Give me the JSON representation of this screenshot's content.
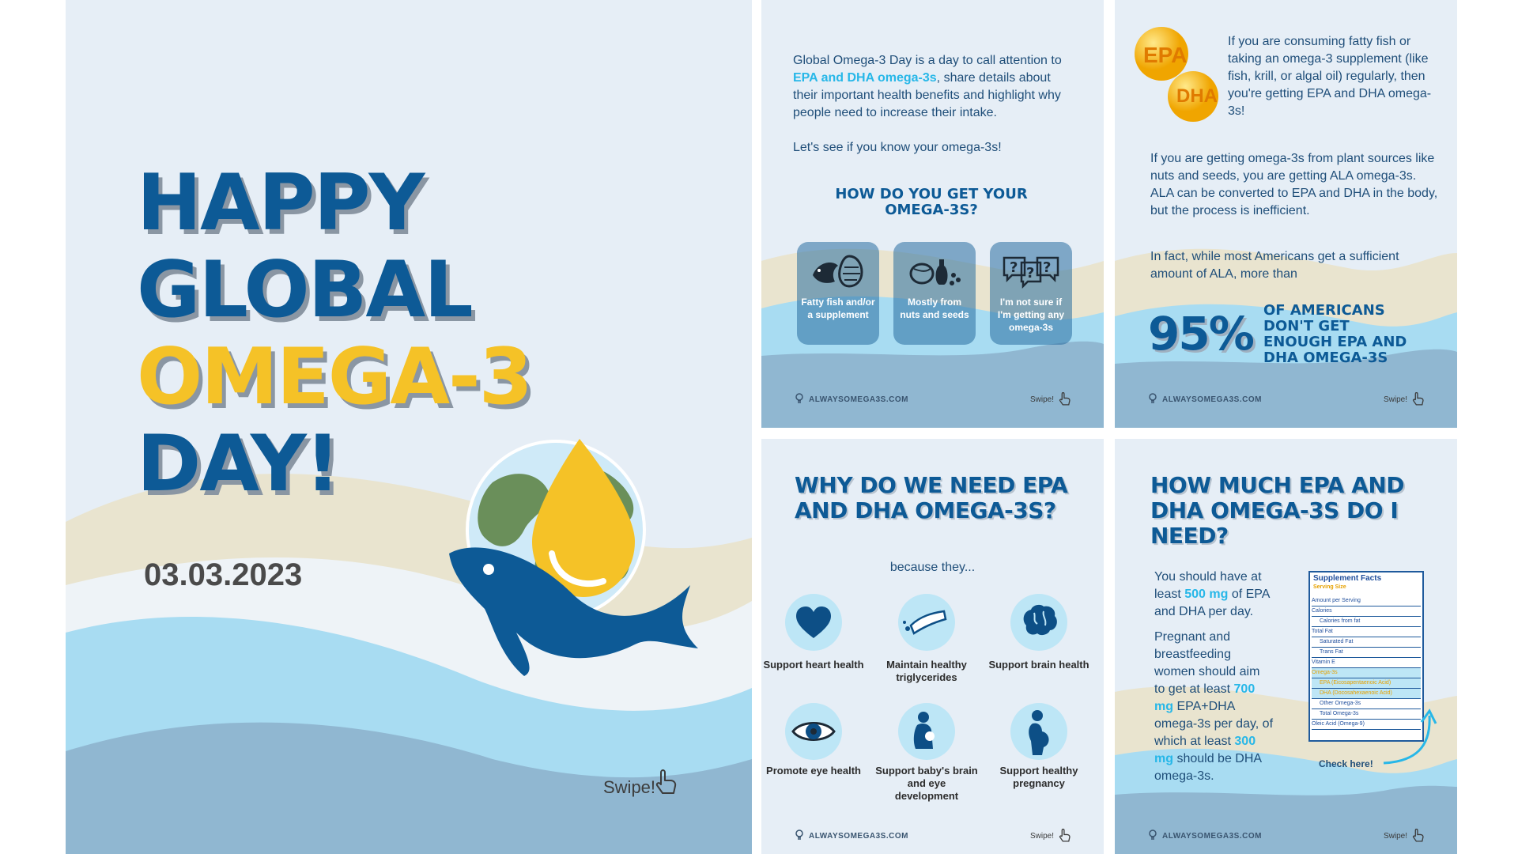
{
  "colors": {
    "dark_blue": "#0d5a96",
    "yellow": "#f5c227",
    "light_blue": "#27b7e8",
    "bg": "#e6eef6"
  },
  "main": {
    "line1": "HAPPY",
    "line2": "GLOBAL",
    "line3": "OMEGA-3",
    "line4": "DAY!",
    "date": "03.03.2023",
    "swipe": "Swipe!"
  },
  "slide_intro": {
    "p1_before": "Global Omega-3 Day is a day to call attention to",
    "p1_highlight": "EPA and DHA omega-3s",
    "p1_after": ", share details about their important health benefits and highlight why people need to increase their intake.",
    "p2": "Let's see if you know your omega-3s!",
    "heading": "HOW DO YOU GET YOUR OMEGA-3S?",
    "cards": [
      {
        "label": "Fatty fish and/or a supplement",
        "icon": "fish-icon"
      },
      {
        "label": "Mostly from nuts and seeds",
        "icon": "nuts-icon"
      },
      {
        "label": "I'm not sure if I'm getting any omega-3s",
        "icon": "question-icon"
      }
    ],
    "footer": "ALWAYSOMEGA3S.COM",
    "swipe": "Swipe!"
  },
  "slide_ala": {
    "badge1": "EPA",
    "badge2": "DHA",
    "p1": "If you are consuming fatty fish or taking an omega-3 supplement (like fish, krill, or algal oil) regularly, then you're getting EPA and DHA omega-3s!",
    "p2": "If you are getting omega-3s from plant sources like nuts and seeds, you are getting ALA omega-3s. ALA can be converted to EPA and DHA in the body, but the process is inefficient.",
    "p3": "In fact, while most Americans get a sufficient amount of ALA, more than",
    "stat": "95%",
    "stat_text": "OF AMERICANS DON'T GET ENOUGH EPA AND DHA OMEGA-3S",
    "footer": "ALWAYSOMEGA3S.COM",
    "swipe": "Swipe!"
  },
  "slide_why": {
    "heading": "WHY DO WE NEED EPA AND DHA OMEGA-3S?",
    "sub": "because they...",
    "items": [
      {
        "label": "Support heart health",
        "icon": "heart-icon"
      },
      {
        "label": "Maintain healthy triglycerides",
        "icon": "artery-icon"
      },
      {
        "label": "Support brain health",
        "icon": "brain-icon"
      },
      {
        "label": "Promote eye health",
        "icon": "eye-icon"
      },
      {
        "label": "Support baby's brain and eye development",
        "icon": "baby-icon"
      },
      {
        "label": "Support healthy pregnancy",
        "icon": "pregnant-icon"
      }
    ],
    "footer": "ALWAYSOMEGA3S.COM",
    "swipe": "Swipe!"
  },
  "slide_howmuch": {
    "heading": "HOW MUCH EPA AND DHA OMEGA-3S DO I NEED?",
    "p1_a": "You should have at least",
    "p1_hl": "500 mg",
    "p1_b": "of EPA and DHA per day.",
    "p2_a": "Pregnant and breastfeeding women should aim to get at least",
    "p2_hl1": "700 mg",
    "p2_b": "EPA+DHA omega-3s per day, of which at least",
    "p2_hl2": "300 mg",
    "p2_c": "should be DHA omega-3s.",
    "facts_title": "Supplement Facts",
    "facts_serving": "Serving Size",
    "facts_rows": [
      "Amount per Serving",
      "Calories",
      "Calories from fat",
      "Total Fat",
      "Saturated Fat",
      "Trans Fat",
      "Vitamin E",
      "Omega-3s",
      "EPA (Eicosapentaenoic Acid)",
      "DHA (Docosahexaenoic Acid)",
      "Other Omega-3s",
      "Total Omega-3s",
      "Oleic Acid (Omega-9)"
    ],
    "check": "Check here!",
    "footer": "ALWAYSOMEGA3S.COM",
    "swipe": "Swipe!"
  }
}
